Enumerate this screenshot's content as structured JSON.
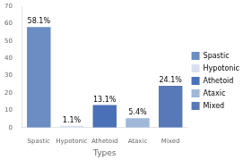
{
  "chart_data": {
    "type": "bar",
    "categories": [
      "Spastic",
      "Hypotonic",
      "Athetoid",
      "Ataxic",
      "Mixed"
    ],
    "values": [
      58.1,
      1.1,
      13.1,
      5.4,
      24.1
    ],
    "value_labels": [
      "58.1%",
      "1.1%",
      "13.1%",
      "5.4%",
      "24.1%"
    ],
    "data_labels": true,
    "colors": [
      "#6b8dc4",
      "#d8e0f0",
      "#4a70b8",
      "#a0b8d8",
      "#5878b8"
    ],
    "xlabel": "Types",
    "ylim": [
      0,
      70
    ],
    "yticks": [
      0,
      10,
      20,
      30,
      40,
      50,
      60,
      70
    ],
    "grid": false,
    "legend": "right"
  }
}
